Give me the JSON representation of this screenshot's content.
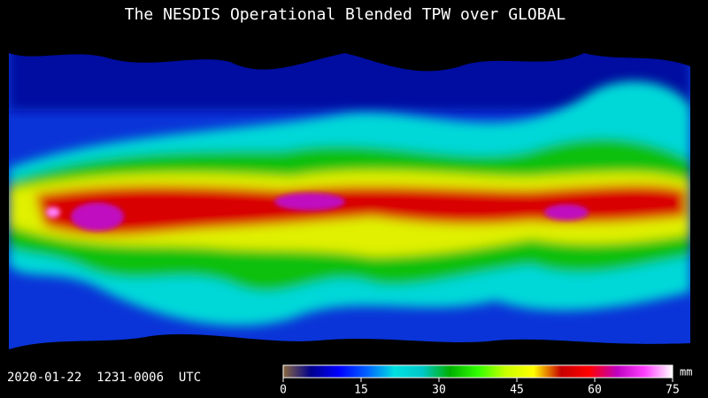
{
  "header": {
    "title": "The NESDIS Operational Blended TPW over GLOBAL"
  },
  "footer": {
    "timestamp": "2020-01-22  1231-0006  UTC"
  },
  "colorbar": {
    "ticks": [
      0,
      15,
      30,
      45,
      60,
      75
    ],
    "unit": "mm",
    "colors": [
      "#8a6a40",
      "#00008c",
      "#0000ff",
      "#0060ff",
      "#00e0e0",
      "#00c8c8",
      "#00b000",
      "#30ff00",
      "#c8ff00",
      "#ffff00",
      "#c80000",
      "#ff0000",
      "#c000c0",
      "#ff40ff",
      "#ffffff"
    ]
  }
}
